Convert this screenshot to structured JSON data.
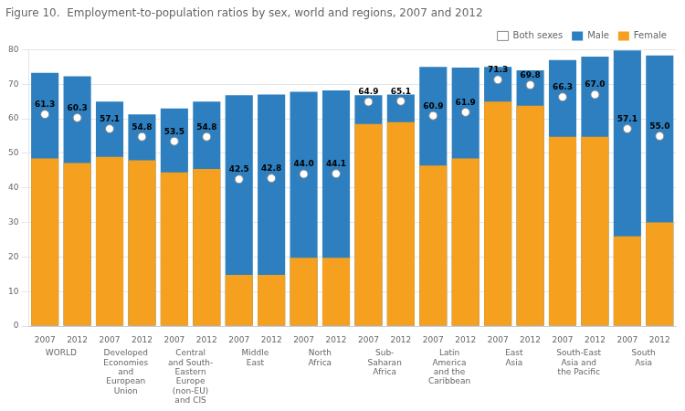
{
  "chart_data": {
    "type": "bar",
    "title": "Figure 10.  Employment-to-population ratios by sex, world and regions, 2007 and 2012",
    "categories": [
      "WORLD",
      "Developed\nEconomies\nand\nEuropean\nUnion",
      "Central\nand South-\nEastern\nEurope\n(non-EU)\nand CIS",
      "Middle\nEast",
      "North\nAfrica",
      "Sub-\nSaharan\nAfrica",
      "Latin\nAmerica\nand the\nCaribbean",
      "East\nAsia",
      "South-East\nAsia and\nthe Pacific",
      "South\nAsia"
    ],
    "years": [
      "2007",
      "2012"
    ],
    "series": [
      {
        "name": "Both sexes",
        "type": "scatter",
        "marker": "circle",
        "color": "#ffffff",
        "data_labels": true,
        "values": [
          [
            61.3,
            60.3
          ],
          [
            57.1,
            54.8
          ],
          [
            53.5,
            54.8
          ],
          [
            42.5,
            42.8
          ],
          [
            44.0,
            44.1
          ],
          [
            64.9,
            65.1
          ],
          [
            60.9,
            61.9
          ],
          [
            71.3,
            69.8
          ],
          [
            66.3,
            67.0
          ],
          [
            57.1,
            55.0
          ]
        ],
        "value_labels": [
          [
            "61.3",
            "60.3"
          ],
          [
            "57.1",
            "54.8"
          ],
          [
            "53.5",
            "54.8"
          ],
          [
            "42.5",
            "42.8"
          ],
          [
            "44.0",
            "44.1"
          ],
          [
            "64.9",
            "65.1"
          ],
          [
            "60.9",
            "61.9"
          ],
          [
            "71.3",
            "69.8"
          ],
          [
            "66.3",
            "67.0"
          ],
          [
            "57.1",
            "55.0"
          ]
        ]
      },
      {
        "name": "Male",
        "type": "bar",
        "color": "#2E7FBF",
        "values": [
          [
            73.3,
            72.3
          ],
          [
            65.0,
            61.3
          ],
          [
            63.0,
            65.0
          ],
          [
            66.8,
            67.0
          ],
          [
            67.8,
            68.2
          ],
          [
            66.8,
            67.0
          ],
          [
            75.0,
            74.8
          ],
          [
            75.0,
            74.0
          ],
          [
            77.0,
            78.0
          ],
          [
            79.8,
            78.3
          ]
        ]
      },
      {
        "name": "Female",
        "type": "bar",
        "color": "#F5A01E",
        "values": [
          [
            48.5,
            47.2
          ],
          [
            49.0,
            48.0
          ],
          [
            44.5,
            45.5
          ],
          [
            14.8,
            14.8
          ],
          [
            19.8,
            19.8
          ],
          [
            58.5,
            59.0
          ],
          [
            46.5,
            48.5
          ],
          [
            65.0,
            63.8
          ],
          [
            54.8,
            54.8
          ],
          [
            26.0,
            30.0
          ]
        ]
      }
    ],
    "ylim": [
      0,
      80
    ],
    "yticks": [
      0,
      10,
      20,
      30,
      40,
      50,
      60,
      70,
      80
    ],
    "grid": true,
    "legend": "upper right"
  }
}
